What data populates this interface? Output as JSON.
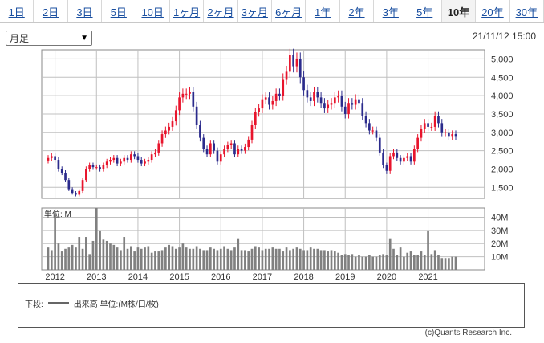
{
  "tabs": [
    {
      "label": "1日",
      "active": false
    },
    {
      "label": "2日",
      "active": false
    },
    {
      "label": "3日",
      "active": false
    },
    {
      "label": "5日",
      "active": false
    },
    {
      "label": "10日",
      "active": false
    },
    {
      "label": "1ヶ月",
      "active": false
    },
    {
      "label": "2ヶ月",
      "active": false
    },
    {
      "label": "3ヶ月",
      "active": false
    },
    {
      "label": "6ヶ月",
      "active": false
    },
    {
      "label": "1年",
      "active": false
    },
    {
      "label": "2年",
      "active": false
    },
    {
      "label": "3年",
      "active": false
    },
    {
      "label": "5年",
      "active": false
    },
    {
      "label": "10年",
      "active": true
    },
    {
      "label": "20年",
      "active": false
    },
    {
      "label": "30年",
      "active": false
    }
  ],
  "period_select": {
    "value": "月足"
  },
  "timestamp": "21/11/12 15:00",
  "legend": {
    "prefix": "下段:",
    "text": "出来高 単位:(M株/口/枚)",
    "color": "#666666"
  },
  "copyright": "(c)Quants Research Inc.",
  "colors": {
    "up": "#e8142c",
    "down": "#2b2b8c",
    "volume": "#808080",
    "grid": "#c0c0c0"
  },
  "chart_data": [
    {
      "type": "candlestick",
      "xlabels": [
        "2012",
        "2013",
        "2014",
        "2015",
        "2016",
        "2017",
        "2018",
        "2019",
        "2020",
        "2021"
      ],
      "yticks": [
        "1,500",
        "2,000",
        "2,500",
        "3,000",
        "3,500",
        "4,000",
        "4,500",
        "5,000"
      ],
      "ylim": [
        1200,
        5250
      ],
      "start": "2011-11",
      "closes": [
        2300,
        2350,
        2250,
        2000,
        1900,
        1700,
        1450,
        1350,
        1300,
        1400,
        1700,
        2000,
        2100,
        2050,
        2050,
        2000,
        2100,
        2200,
        2250,
        2300,
        2150,
        2200,
        2300,
        2250,
        2400,
        2350,
        2250,
        2150,
        2200,
        2250,
        2400,
        2450,
        2700,
        2950,
        3050,
        3150,
        3300,
        3600,
        3950,
        4050,
        4050,
        4100,
        3700,
        3200,
        2850,
        2550,
        2400,
        2700,
        2500,
        2200,
        2400,
        2550,
        2650,
        2700,
        2400,
        2550,
        2500,
        2600,
        2800,
        3200,
        3550,
        3650,
        3900,
        3950,
        3750,
        3850,
        4050,
        4000,
        4450,
        4650,
        5100,
        4800,
        5000,
        4500,
        4150,
        3950,
        3850,
        4100,
        3950,
        3800,
        3650,
        3750,
        3800,
        3950,
        4000,
        3700,
        3500,
        3800,
        3750,
        3900,
        3800,
        3450,
        3250,
        3050,
        3050,
        2850,
        2450,
        2100,
        1950,
        2350,
        2450,
        2300,
        2200,
        2300,
        2350,
        2200,
        2550,
        2850,
        3100,
        3250,
        3150,
        3150,
        3450,
        3250,
        3000,
        3000,
        2900,
        2950,
        2900
      ],
      "volume_ticks": [
        "10M",
        "20M",
        "30M",
        "40M"
      ],
      "volume_unit_label": "単位: M",
      "volume_ylim": [
        0,
        47
      ],
      "volumes": [
        17,
        15,
        42,
        20,
        14,
        16,
        17,
        19,
        17,
        25,
        16,
        25,
        12,
        22,
        47,
        30,
        23,
        22,
        20,
        19,
        17,
        15,
        25,
        16,
        18,
        14,
        17,
        16,
        17,
        18,
        13,
        14,
        14,
        15,
        17,
        19,
        18,
        16,
        17,
        20,
        17,
        16,
        16,
        18,
        16,
        15,
        15,
        17,
        16,
        15,
        16,
        18,
        16,
        15,
        17,
        24,
        15,
        15,
        14,
        16,
        18,
        17,
        15,
        16,
        16,
        17,
        16,
        16,
        14,
        17,
        15,
        16,
        17,
        16,
        15,
        15,
        17,
        16,
        16,
        15,
        15,
        14,
        15,
        14,
        13,
        11,
        12,
        11,
        12,
        10,
        11,
        10,
        10,
        11,
        10,
        10,
        11,
        12,
        11,
        24,
        16,
        11,
        17,
        10,
        13,
        14,
        11,
        11,
        14,
        11,
        30,
        12,
        15,
        11,
        9,
        9,
        9,
        10,
        10
      ]
    }
  ]
}
